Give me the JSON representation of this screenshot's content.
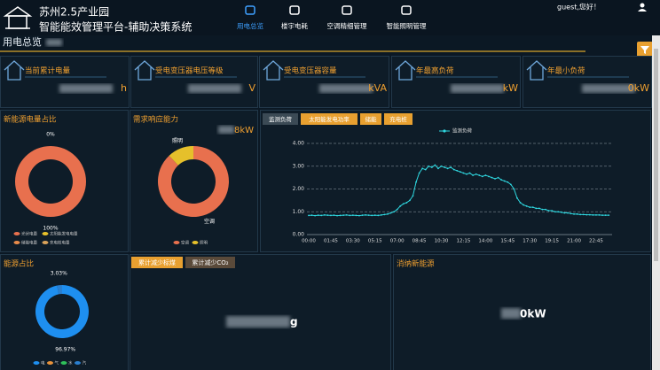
{
  "header": {
    "title": "苏州2.5产业园",
    "subtitle": "智能能效管理平台-辅助决策系统",
    "nav": [
      "用电总览",
      "楼宇电耗",
      "空调精细管理",
      "智能照明管理"
    ],
    "user": "guest,您好！"
  },
  "page_title": "用电总览",
  "kpis": [
    {
      "label": "当前累计电量",
      "value": "h"
    },
    {
      "label": "受电变压器电压等级",
      "value": "V"
    },
    {
      "label": "受电变压器容量",
      "value": "kVA"
    },
    {
      "label": "年最高负荷",
      "value": "kW"
    },
    {
      "label": "年最小负荷",
      "value": "0kW"
    }
  ],
  "chart_data": [
    {
      "type": "pie",
      "title": "新能源电量占比",
      "categories": [
        "光伏电量",
        "太阳能发电电量",
        "储能电量",
        "充电桩电量"
      ],
      "values": [
        100,
        0,
        0,
        0
      ],
      "value_labels": [
        "100%",
        "0%",
        null,
        null
      ],
      "colors": [
        "#e8704e",
        "#e5c02b",
        "#e88a4a",
        "#d9a25a"
      ]
    },
    {
      "type": "pie",
      "title": "需求响应能力",
      "annotation": "8kW",
      "categories": [
        "空调",
        "照明"
      ],
      "values": [
        88,
        12
      ],
      "colors": [
        "#e8704e",
        "#e5c02b"
      ]
    },
    {
      "type": "line",
      "tabs": [
        "监测负荷",
        "太阳能发电功率",
        "储能",
        "充电桩"
      ],
      "categories": [
        "00:00",
        null,
        null,
        null,
        null,
        null,
        null,
        "01:45",
        null,
        null,
        null,
        null,
        null,
        null,
        "03:30",
        null,
        null,
        null,
        null,
        null,
        null,
        "05:15",
        null,
        null,
        null,
        null,
        null,
        null,
        "07:00",
        null,
        null,
        null,
        null,
        null,
        null,
        "08:45",
        null,
        null,
        null,
        null,
        null,
        null,
        "10:30",
        null,
        null,
        null,
        null,
        null,
        null,
        "12:15",
        null,
        null,
        null,
        null,
        null,
        null,
        "14:00",
        null,
        null,
        null,
        null,
        null,
        null,
        "15:45",
        null,
        null,
        null,
        null,
        null,
        null,
        "17:30",
        null,
        null,
        null,
        null,
        null,
        null,
        "19:15",
        null,
        null,
        null,
        null,
        null,
        null,
        "21:00",
        null,
        null,
        null,
        null,
        null,
        null,
        "22:45",
        null,
        null,
        null,
        null
      ],
      "series": [
        {
          "name": "监测负荷",
          "color": "#2fd8e0",
          "values": [
            0.84,
            0.85,
            0.83,
            0.85,
            0.84,
            0.86,
            0.85,
            0.84,
            0.85,
            0.83,
            0.84,
            0.85,
            0.86,
            0.84,
            0.85,
            0.84,
            0.83,
            0.85,
            0.86,
            0.85,
            0.84,
            0.85,
            0.84,
            0.86,
            0.88,
            0.9,
            0.95,
            1.0,
            1.1,
            1.25,
            1.35,
            1.4,
            1.5,
            1.7,
            2.3,
            2.7,
            2.9,
            2.85,
            3.0,
            2.95,
            3.05,
            2.9,
            3.0,
            2.95,
            2.9,
            2.95,
            2.85,
            2.8,
            2.75,
            2.7,
            2.65,
            2.7,
            2.6,
            2.65,
            2.6,
            2.55,
            2.6,
            2.55,
            2.5,
            2.45,
            2.5,
            2.4,
            2.35,
            2.3,
            2.2,
            2.0,
            1.6,
            1.4,
            1.3,
            1.25,
            1.2,
            1.2,
            1.15,
            1.15,
            1.1,
            1.1,
            1.05,
            1.05,
            1.0,
            1.0,
            0.98,
            0.95,
            0.95,
            0.92,
            0.9,
            0.9,
            0.88,
            0.88,
            0.87,
            0.87,
            0.86,
            0.86,
            0.86,
            0.85,
            0.85,
            0.85
          ]
        }
      ],
      "ylim": [
        0,
        4
      ],
      "yticks": [
        {
          "value": 0,
          "label": "0.00"
        },
        {
          "value": 1,
          "label": "1.00"
        },
        {
          "value": 2,
          "label": "2.00"
        },
        {
          "value": 3,
          "label": "3.00"
        },
        {
          "value": 4,
          "label": "4.00"
        }
      ],
      "grid": true
    },
    {
      "type": "pie",
      "title": "能源占比",
      "categories": [
        "电",
        "气",
        "水",
        "汽"
      ],
      "values": [
        96.97,
        0,
        0,
        3.03
      ],
      "value_labels": [
        "96.97%",
        null,
        null,
        "3.03%"
      ],
      "colors": [
        "#1e8ff0",
        "#e8923a",
        "#2fbf5a",
        "#2a7fd0"
      ]
    }
  ],
  "reduction": {
    "tabs": [
      "累计减少标煤",
      "累计减少CO₂"
    ],
    "value": "g"
  },
  "new_energy": {
    "title": "消纳新能源",
    "value": "0kW"
  }
}
